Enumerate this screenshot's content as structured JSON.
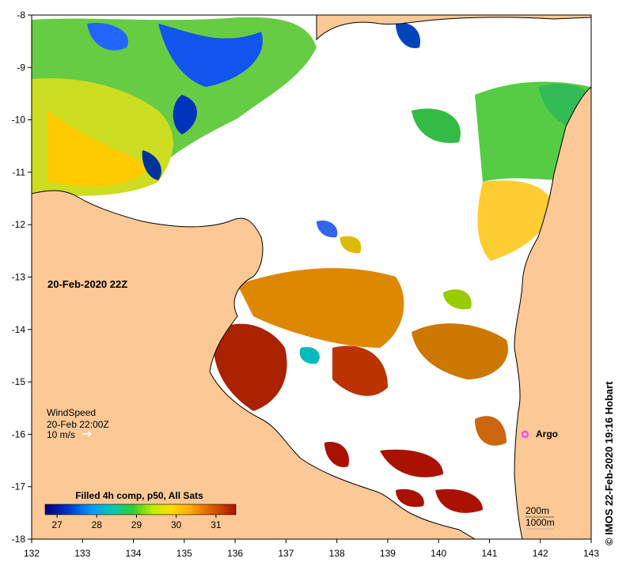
{
  "map": {
    "lon_range": [
      132,
      143
    ],
    "lat_range": [
      -18,
      -8
    ],
    "x_ticks": [
      "132",
      "133",
      "134",
      "135",
      "136",
      "137",
      "138",
      "139",
      "140",
      "141",
      "142",
      "143"
    ],
    "y_ticks": [
      "-8",
      "-9",
      "-10",
      "-11",
      "-12",
      "-13",
      "-14",
      "-15",
      "-16",
      "-17",
      "-18"
    ],
    "date_label": "20-Feb-2020 22Z",
    "wind": {
      "title": "WindSpeed",
      "time": "20-Feb 22:00Z",
      "scale": "10 m/s"
    },
    "argo_label": "Argo",
    "argo_position": [
      141.7,
      -16.0
    ],
    "depth_contours": [
      "200m",
      "1000m"
    ],
    "colorbar": {
      "title": "Filled 4h comp, p50, All Sats",
      "ticks": [
        "27",
        "28",
        "29",
        "30",
        "31"
      ],
      "range": [
        26.7,
        31.5
      ]
    },
    "credit": "© IMOS 22-Feb-2020 19:16 Hobart",
    "colors": {
      "land": "#fbc896",
      "ocean_nodata": "#ffffff",
      "argo": "#ff33ff"
    }
  }
}
